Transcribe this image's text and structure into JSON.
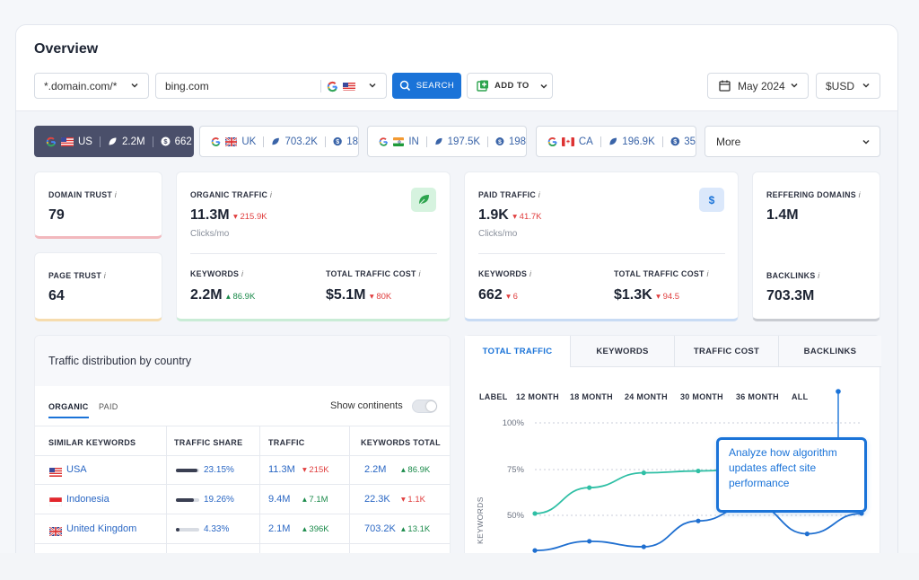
{
  "header": {
    "title": "Overview",
    "domain_mode": "*.domain.com/*",
    "domain_input": "bing.com",
    "search_label": "SEARCH",
    "add_to_label": "ADD TO",
    "date": "May 2024",
    "currency": "$USD"
  },
  "countries": [
    {
      "code": "US",
      "traffic": "2.2M",
      "keywords": "662",
      "active": true
    },
    {
      "code": "UK",
      "traffic": "703.2K",
      "keywords": "18"
    },
    {
      "code": "IN",
      "traffic": "197.5K",
      "keywords": "198"
    },
    {
      "code": "CA",
      "traffic": "196.9K",
      "keywords": "35"
    }
  ],
  "more_label": "More",
  "metrics": {
    "domain_trust": {
      "label": "DOMAIN TRUST",
      "value": "79"
    },
    "page_trust": {
      "label": "PAGE TRUST",
      "value": "64"
    },
    "organic_traffic": {
      "label": "ORGANIC TRAFFIC",
      "value": "11.3M",
      "delta": "215.9K",
      "unit": "Clicks/mo"
    },
    "organic_keywords": {
      "label": "KEYWORDS",
      "value": "2.2M",
      "delta": "86.9K"
    },
    "organic_cost": {
      "label": "TOTAL TRAFFIC COST",
      "value": "$5.1M",
      "delta": "80K"
    },
    "paid_traffic": {
      "label": "PAID TRAFFIC",
      "value": "1.9K",
      "delta": "41.7K",
      "unit": "Clicks/mo"
    },
    "paid_keywords": {
      "label": "KEYWORDS",
      "value": "662",
      "delta": "6"
    },
    "paid_cost": {
      "label": "TOTAL TRAFFIC COST",
      "value": "$1.3K",
      "delta": "94.5"
    },
    "referring_domains": {
      "label": "REFFERING DOMAINS",
      "value": "1.4M"
    },
    "backlinks": {
      "label": "BACKLINKS",
      "value": "703.3M"
    },
    "info_mark": "i",
    "paid_badge": "$"
  },
  "distribution": {
    "title": "Traffic distribution by country",
    "tabs": [
      "ORGANIC",
      "PAID"
    ],
    "toggle_label": "Show continents",
    "columns": [
      "SIMILAR KEYWORDS",
      "TRAFFIC SHARE",
      "TRAFFIC",
      "KEYWORDS TOTAL"
    ],
    "rows": [
      {
        "country": "USA",
        "share": "23.15%",
        "share_value": 0.2315,
        "traffic": "11.3M",
        "traffic_delta": "215K",
        "traffic_dir": "down",
        "keywords": "2.2M",
        "kw_delta": "86.9K",
        "kw_dir": "up"
      },
      {
        "country": "Indonesia",
        "share": "19.26%",
        "share_value": 0.1926,
        "traffic": "9.4M",
        "traffic_delta": "7.1M",
        "traffic_dir": "up",
        "keywords": "22.3K",
        "kw_delta": "1.1K",
        "kw_dir": "down"
      },
      {
        "country": "United Kingdom",
        "share": "4.33%",
        "share_value": 0.0433,
        "traffic": "2.1M",
        "traffic_delta": "396K",
        "traffic_dir": "up",
        "keywords": "703.2K",
        "kw_delta": "13.1K",
        "kw_dir": "up"
      }
    ]
  },
  "chart": {
    "tabs": [
      "TOTAL TRAFFIC",
      "KEYWORDS",
      "TRAFFIC COST",
      "BACKLINKS"
    ],
    "periods": [
      "LABEL",
      "12 MONTH",
      "18 MONTH",
      "24 MONTH",
      "30 MONTH",
      "36 MONTH",
      "ALL"
    ],
    "y_label": "KEYWORDS",
    "tooltip": "Analyze how algorithm updates affect site performance"
  },
  "chart_data": {
    "type": "line",
    "ylabel": "KEYWORDS",
    "yticks": [
      "100%",
      "75%",
      "50%"
    ],
    "ylim": [
      30,
      105
    ],
    "x": [
      1,
      2,
      3,
      4,
      5,
      6,
      7
    ],
    "series": [
      {
        "color": "#2fbfa5",
        "values": [
          51,
          65,
          73,
          74,
          75,
          null,
          null
        ]
      },
      {
        "color": "#1f6fd0",
        "values": [
          31,
          36,
          33,
          47,
          56,
          40,
          51
        ]
      }
    ]
  },
  "colors": {
    "accent": "#1a73d8",
    "up": "#1a8a4a",
    "down": "#e03e3e",
    "tab_active": "#4a4f6a"
  }
}
